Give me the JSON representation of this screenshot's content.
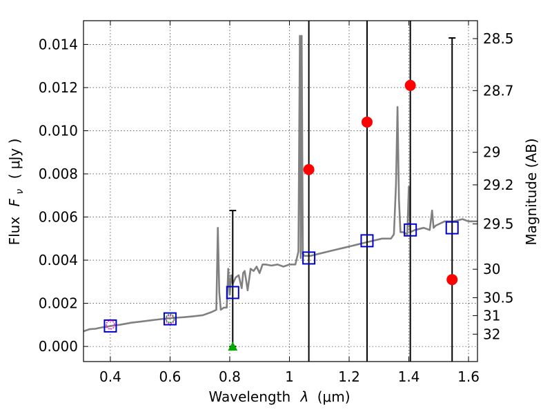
{
  "chart_data": {
    "type": "scatter",
    "xlabel_prefix": "Wavelength",
    "xlabel_var": "λ",
    "xlabel_unit": "(μm)",
    "ylabel_prefix": "Flux",
    "ylabel_var": "F",
    "ylabel_sub": "ν",
    "ylabel_unit": "( μJy )",
    "y2label": "Magnitude (AB)",
    "xlim": [
      0.31,
      1.63
    ],
    "ylim": [
      -0.0007,
      0.0151
    ],
    "xticks": [
      0.4,
      0.6,
      0.8,
      1.0,
      1.2,
      1.4,
      1.6
    ],
    "xtick_labels": [
      "0.4",
      "0.6",
      "0.8",
      "1",
      "1.2",
      "1.4",
      "1.6"
    ],
    "yticks": [
      0.0,
      0.002,
      0.004,
      0.006,
      0.008,
      0.01,
      0.012,
      0.014
    ],
    "ytick_labels": [
      "0.000",
      "0.002",
      "0.004",
      "0.006",
      "0.008",
      "0.010",
      "0.012",
      "0.014"
    ],
    "mag_ticks": [
      {
        "label": "28.5",
        "flux": 0.01427
      },
      {
        "label": "28.7",
        "flux": 0.01186
      },
      {
        "label": "29",
        "flux": 0.009
      },
      {
        "label": "29.2",
        "flux": 0.00749
      },
      {
        "label": "29.5",
        "flux": 0.00568
      },
      {
        "label": "30",
        "flux": 0.00358
      },
      {
        "label": "30.5",
        "flux": 0.00226
      },
      {
        "label": "31",
        "flux": 0.00143
      },
      {
        "label": "32",
        "flux": 0.00057
      }
    ],
    "grid": true,
    "series": [
      {
        "name": "model spectrum",
        "kind": "line",
        "color": "#808080",
        "x": [
          0.31,
          0.33,
          0.35,
          0.37,
          0.39,
          0.41,
          0.43,
          0.45,
          0.47,
          0.5,
          0.53,
          0.56,
          0.59,
          0.62,
          0.65,
          0.68,
          0.71,
          0.74,
          0.755,
          0.76,
          0.765,
          0.77,
          0.78,
          0.79,
          0.795,
          0.8,
          0.805,
          0.81,
          0.82,
          0.83,
          0.84,
          0.845,
          0.85,
          0.86,
          0.87,
          0.88,
          0.89,
          0.9,
          0.91,
          0.92,
          0.94,
          0.96,
          0.98,
          1.0,
          1.02,
          1.03,
          1.035,
          1.038,
          1.041,
          1.045,
          1.05,
          1.07,
          1.1,
          1.13,
          1.16,
          1.19,
          1.22,
          1.25,
          1.28,
          1.31,
          1.34,
          1.35,
          1.357,
          1.362,
          1.367,
          1.372,
          1.38,
          1.395,
          1.4,
          1.405,
          1.42,
          1.45,
          1.47,
          1.478,
          1.483,
          1.49,
          1.52,
          1.55,
          1.58,
          1.6,
          1.63
        ],
        "y": [
          0.0007,
          0.0008,
          0.00082,
          0.00088,
          0.00092,
          0.00097,
          0.001,
          0.00105,
          0.0011,
          0.00115,
          0.0012,
          0.00125,
          0.0013,
          0.00133,
          0.00136,
          0.0014,
          0.00145,
          0.0016,
          0.0017,
          0.0055,
          0.0025,
          0.0017,
          0.0018,
          0.0018,
          0.0036,
          0.0024,
          0.0033,
          0.0029,
          0.0032,
          0.0033,
          0.0027,
          0.0034,
          0.0035,
          0.0026,
          0.0036,
          0.0035,
          0.0037,
          0.0034,
          0.0038,
          0.0038,
          0.00375,
          0.0038,
          0.0037,
          0.0038,
          0.0038,
          0.0044,
          0.0144,
          0.0041,
          0.0144,
          0.0043,
          0.0042,
          0.0042,
          0.0043,
          0.0044,
          0.0045,
          0.0046,
          0.0047,
          0.0048,
          0.0049,
          0.005,
          0.005,
          0.0052,
          0.0075,
          0.0111,
          0.0068,
          0.0053,
          0.0053,
          0.0052,
          0.0074,
          0.0053,
          0.0054,
          0.0055,
          0.0054,
          0.0063,
          0.0055,
          0.0056,
          0.0058,
          0.0058,
          0.0059,
          0.0058,
          0.0058
        ]
      },
      {
        "name": "model photometry",
        "kind": "open-square",
        "color": "#0000cc",
        "x": [
          0.4,
          0.6,
          0.81,
          1.065,
          1.26,
          1.405,
          1.545
        ],
        "y": [
          0.00095,
          0.00128,
          0.0025,
          0.0041,
          0.0049,
          0.0054,
          0.0055
        ]
      },
      {
        "name": "observed fluxes",
        "kind": "filled-circle",
        "color": "#ff0000",
        "x": [
          1.065,
          1.26,
          1.405,
          1.545
        ],
        "y": [
          0.0082,
          0.0104,
          0.0121,
          0.0031
        ]
      },
      {
        "name": "observed fluxes (optical)",
        "kind": "open-circle",
        "color": "#ff00ff",
        "x": [
          0.4,
          0.6
        ],
        "y": [
          0.001,
          0.00125
        ]
      },
      {
        "name": "marker",
        "kind": "open-circle",
        "color": "#00aa00",
        "x": [
          0.6
        ],
        "y": [
          0.0013
        ]
      },
      {
        "name": "upper limit",
        "kind": "filled-triangle",
        "color": "#00aa00",
        "x": [
          0.81
        ],
        "y": [
          0.0
        ]
      }
    ],
    "errorbars": [
      {
        "x": 0.81,
        "ylow": 0.0,
        "yhigh": 0.0063
      },
      {
        "x": 1.065,
        "ylow": -0.0007,
        "yhigh": 0.0151
      },
      {
        "x": 1.26,
        "ylow": -0.0007,
        "yhigh": 0.0151
      },
      {
        "x": 1.405,
        "ylow": -0.0007,
        "yhigh": 0.0151
      },
      {
        "x": 1.545,
        "ylow": -0.0007,
        "yhigh": 0.0143
      }
    ]
  }
}
